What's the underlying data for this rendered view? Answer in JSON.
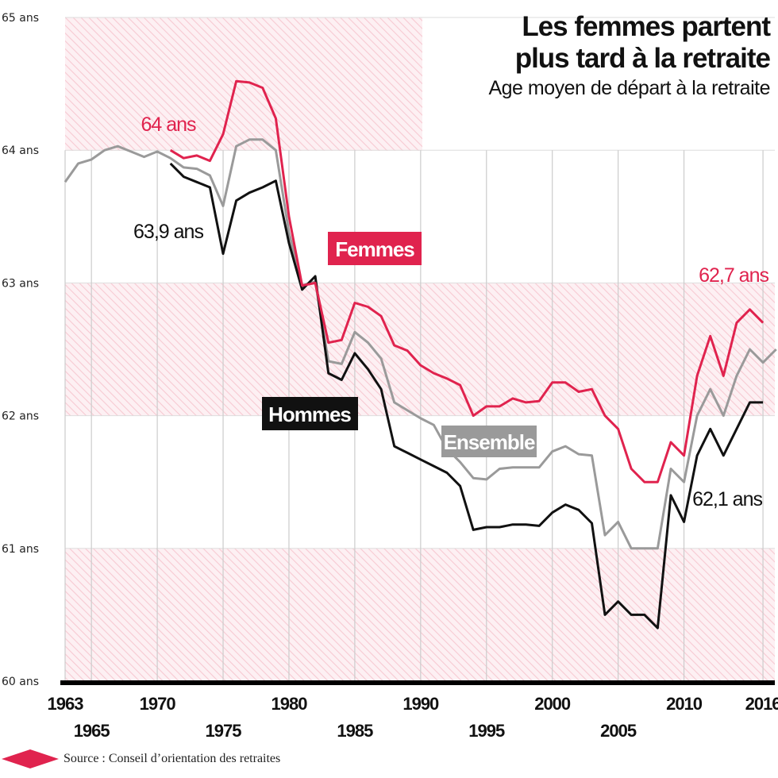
{
  "title_line1": "Les femmes partent",
  "title_line2": "plus tard à la retraite",
  "subtitle": "Age moyen de départ à la retraite",
  "source": "Source : Conseil d’orientation des retraites",
  "colors": {
    "femmes": "#e0234e",
    "hommes": "#111111",
    "ensemble": "#9a9a9a",
    "band": "#f7c9d2",
    "grid": "#cccccc",
    "axis": "#000000"
  },
  "chart_data": {
    "type": "line",
    "title": "Les femmes partent plus tard à la retraite",
    "subtitle": "Age moyen de départ à la retraite",
    "xlabel": "",
    "ylabel": "",
    "xlim": [
      1963,
      2016.9
    ],
    "ylim": [
      60,
      65
    ],
    "grid": true,
    "y_ticks": [
      60,
      61,
      62,
      63,
      64,
      65
    ],
    "y_tick_labels": [
      "60 ans",
      "61 ans",
      "62 ans",
      "63 ans",
      "64 ans",
      "65 ans"
    ],
    "x_ticks_top": [
      1963,
      1970,
      1980,
      1990,
      2000,
      2010,
      2016
    ],
    "x_ticks_bottom": [
      1965,
      1975,
      1985,
      1995,
      2005
    ],
    "x_gridlines": [
      1963,
      1965,
      1970,
      1975,
      1980,
      1985,
      1990,
      1995,
      2000,
      2005,
      2010,
      2016
    ],
    "series": [
      {
        "name": "Femmes",
        "x": [
          1971,
          1972,
          1973,
          1974,
          1975,
          1976,
          1977,
          1978,
          1979,
          1980,
          1981,
          1982,
          1983,
          1984,
          1985,
          1986,
          1987,
          1988,
          1989,
          1990,
          1991,
          1992,
          1993,
          1994,
          1995,
          1996,
          1997,
          1998,
          1999,
          2000,
          2001,
          2002,
          2003,
          2004,
          2005,
          2006,
          2007,
          2008,
          2009,
          2010,
          2011,
          2012,
          2013,
          2014,
          2015,
          2016
        ],
        "y": [
          64.0,
          63.94,
          63.96,
          63.92,
          64.12,
          64.52,
          64.51,
          64.47,
          64.24,
          63.5,
          62.98,
          63.0,
          62.55,
          62.57,
          62.85,
          62.82,
          62.75,
          62.53,
          62.49,
          62.38,
          62.32,
          62.28,
          62.23,
          62.0,
          62.07,
          62.07,
          62.13,
          62.1,
          62.11,
          62.25,
          62.25,
          62.18,
          62.2,
          62.0,
          61.9,
          61.6,
          61.5,
          61.5,
          61.8,
          61.7,
          62.3,
          62.6,
          62.3,
          62.7,
          62.8,
          62.7
        ]
      },
      {
        "name": "Hommes",
        "x": [
          1971,
          1972,
          1973,
          1974,
          1975,
          1976,
          1977,
          1978,
          1979,
          1980,
          1981,
          1982,
          1983,
          1984,
          1985,
          1986,
          1987,
          1988,
          1989,
          1990,
          1991,
          1992,
          1993,
          1994,
          1995,
          1996,
          1997,
          1998,
          1999,
          2000,
          2001,
          2002,
          2003,
          2004,
          2005,
          2006,
          2007,
          2008,
          2009,
          2010,
          2011,
          2012,
          2013,
          2014,
          2015,
          2016
        ],
        "y": [
          63.9,
          63.8,
          63.76,
          63.72,
          63.22,
          63.62,
          63.68,
          63.72,
          63.77,
          63.3,
          62.95,
          63.05,
          62.32,
          62.27,
          62.47,
          62.35,
          62.2,
          61.77,
          61.72,
          61.67,
          61.62,
          61.57,
          61.47,
          61.14,
          61.16,
          61.16,
          61.18,
          61.18,
          61.17,
          61.27,
          61.33,
          61.29,
          61.19,
          60.5,
          60.6,
          60.5,
          60.5,
          60.4,
          61.4,
          61.2,
          61.7,
          61.9,
          61.7,
          61.9,
          62.1,
          62.1
        ]
      },
      {
        "name": "Ensemble",
        "x": [
          1963,
          1964,
          1965,
          1966,
          1967,
          1968,
          1969,
          1970,
          1971,
          1972,
          1973,
          1974,
          1975,
          1976,
          1977,
          1978,
          1979,
          1980,
          1981,
          1982,
          1983,
          1984,
          1985,
          1986,
          1987,
          1988,
          1989,
          1990,
          1991,
          1992,
          1993,
          1994,
          1995,
          1996,
          1997,
          1998,
          1999,
          2000,
          2001,
          2002,
          2003,
          2004,
          2005,
          2006,
          2007,
          2008,
          2009,
          2010,
          2011,
          2012,
          2013,
          2014,
          2015,
          2016,
          2017
        ],
        "y": [
          63.76,
          63.9,
          63.93,
          64.0,
          64.03,
          63.99,
          63.95,
          63.99,
          63.94,
          63.87,
          63.86,
          63.81,
          63.58,
          64.03,
          64.08,
          64.08,
          64.0,
          63.38,
          62.98,
          63.01,
          62.41,
          62.39,
          62.63,
          62.55,
          62.43,
          62.1,
          62.04,
          61.98,
          61.93,
          61.75,
          61.65,
          61.53,
          61.52,
          61.6,
          61.61,
          61.61,
          61.61,
          61.73,
          61.77,
          61.71,
          61.7,
          61.1,
          61.2,
          61.0,
          61.0,
          61.0,
          61.6,
          61.5,
          62.0,
          62.2,
          62.0,
          62.3,
          62.5,
          62.4,
          62.5
        ]
      }
    ],
    "annotations": [
      {
        "text": "64 ans",
        "series": "Femmes"
      },
      {
        "text": "63,9 ans",
        "series": "Hommes"
      },
      {
        "text": "62,7 ans",
        "series": "Femmes"
      },
      {
        "text": "62,1 ans",
        "series": "Hommes"
      }
    ],
    "series_labels": [
      "Femmes",
      "Hommes",
      "Ensemble"
    ]
  }
}
